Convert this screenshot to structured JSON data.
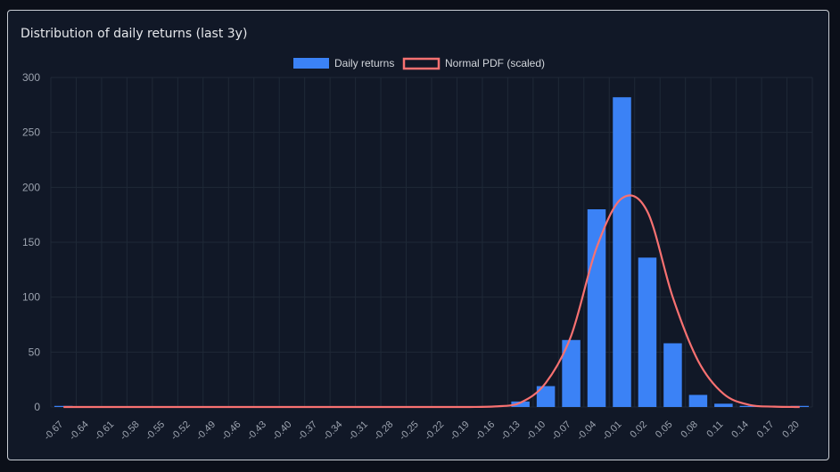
{
  "card": {
    "title": "Distribution of daily returns (last 3y)"
  },
  "chart_data": {
    "type": "bar",
    "title": "Distribution of daily returns (last 3y)",
    "categories": [
      "-0.67",
      "-0.64",
      "-0.61",
      "-0.58",
      "-0.55",
      "-0.52",
      "-0.49",
      "-0.46",
      "-0.43",
      "-0.40",
      "-0.37",
      "-0.34",
      "-0.31",
      "-0.28",
      "-0.25",
      "-0.22",
      "-0.19",
      "-0.16",
      "-0.13",
      "-0.10",
      "-0.07",
      "-0.04",
      "-0.01",
      "0.02",
      "0.05",
      "0.08",
      "0.11",
      "0.14",
      "0.17",
      "0.20"
    ],
    "series": [
      {
        "name": "Daily returns",
        "type": "bar",
        "color": "#3b82f6",
        "values": [
          1,
          0,
          0,
          0,
          0,
          0,
          0,
          0,
          0,
          0,
          0,
          0,
          0,
          0,
          0,
          0,
          0,
          0,
          5,
          19,
          61,
          180,
          282,
          136,
          58,
          11,
          3,
          1,
          0,
          1
        ]
      },
      {
        "name": "Normal PDF (scaled)",
        "type": "line",
        "color": "#f87171",
        "values": [
          0,
          0,
          0,
          0,
          0,
          0,
          0,
          0,
          0,
          0,
          0,
          0,
          0,
          0,
          0,
          0,
          0,
          0.5,
          4,
          22,
          65,
          145,
          190,
          178,
          100,
          42,
          12,
          2,
          0.3,
          0
        ]
      }
    ],
    "ylim": [
      0,
      300
    ],
    "yticks": [
      0,
      50,
      100,
      150,
      200,
      250,
      300
    ],
    "legend": "top-center",
    "grid": true,
    "colors": {
      "background": "#111827",
      "grid": "#1f2937",
      "text": "#9ca3af"
    }
  }
}
